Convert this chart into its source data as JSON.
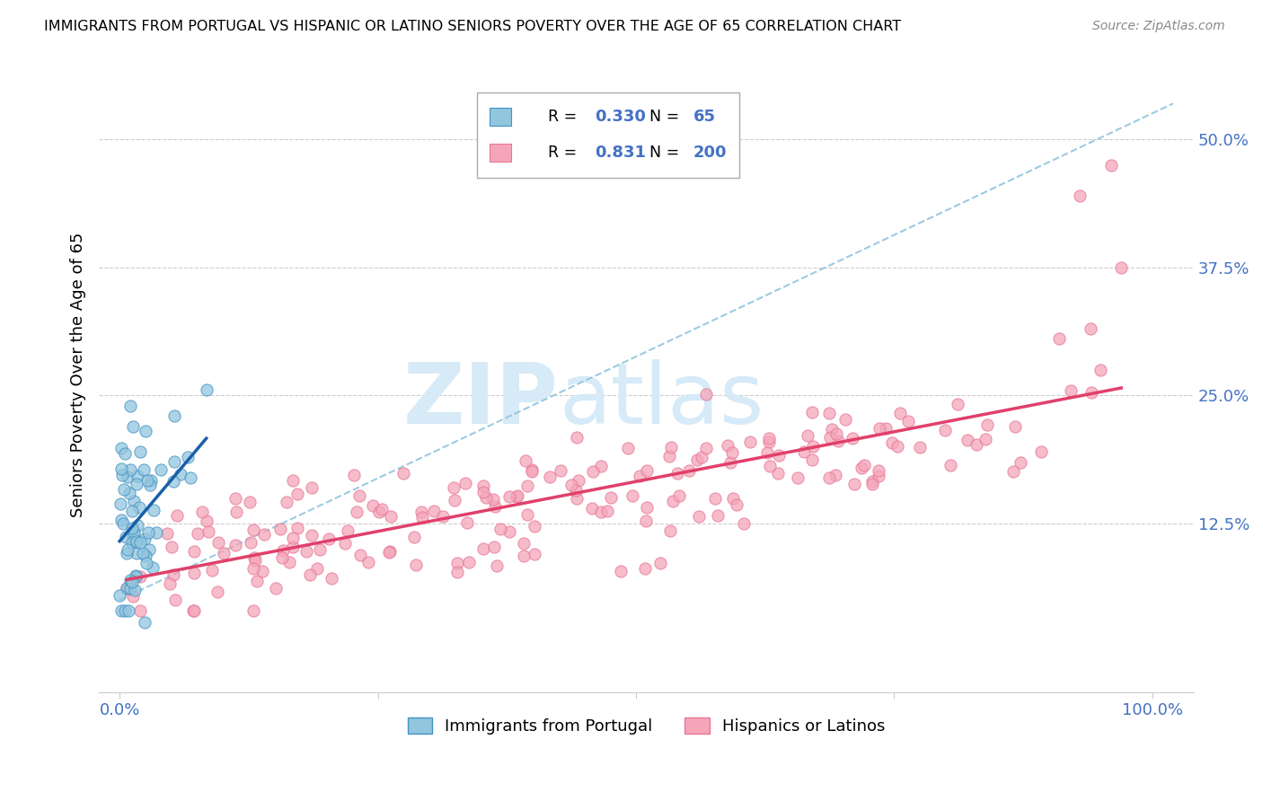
{
  "title": "IMMIGRANTS FROM PORTUGAL VS HISPANIC OR LATINO SENIORS POVERTY OVER THE AGE OF 65 CORRELATION CHART",
  "source": "Source: ZipAtlas.com",
  "ylabel": "Seniors Poverty Over the Age of 65",
  "xlim_min": -0.02,
  "xlim_max": 1.04,
  "ylim_min": -0.04,
  "ylim_max": 0.58,
  "yticks": [
    0.0,
    0.125,
    0.25,
    0.375,
    0.5
  ],
  "ytick_labels": [
    "",
    "12.5%",
    "25.0%",
    "37.5%",
    "50.0%"
  ],
  "xticks": [
    0.0,
    0.25,
    0.5,
    0.75,
    1.0
  ],
  "xtick_labels": [
    "0.0%",
    "",
    "",
    "",
    "100.0%"
  ],
  "blue_R": 0.33,
  "blue_N": 65,
  "pink_R": 0.831,
  "pink_N": 200,
  "blue_color": "#92c5de",
  "pink_color": "#f4a6b8",
  "blue_edge_color": "#4393c3",
  "pink_edge_color": "#e8769a",
  "blue_line_color": "#1a5fa8",
  "pink_line_color": "#e0406a",
  "dashed_line_color": "#92c5de",
  "tick_color": "#4472c4",
  "legend_text_color": "#000000",
  "legend_value_color": "#4472c4",
  "watermark_color": "#d6eaf8",
  "background_color": "#ffffff",
  "grid_color": "#cccccc"
}
